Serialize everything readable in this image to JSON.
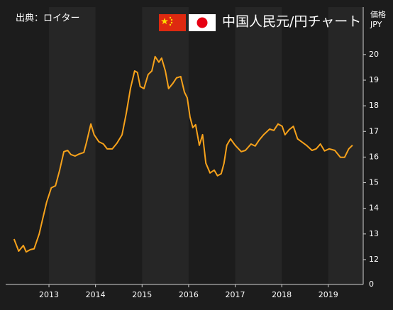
{
  "chart_data": {
    "type": "line",
    "title": "中国人民元/円チャート",
    "source": "出典：ロイター",
    "y_axis_label": [
      "価格",
      "JPY"
    ],
    "axis_break_label": "0",
    "color": "#f7a21b",
    "xlim": [
      2012.07,
      2019.75
    ],
    "xticks": [
      2013,
      2014,
      2015,
      2016,
      2017,
      2018,
      2019
    ],
    "ylim": [
      11.03,
      21.85
    ],
    "yticks": [
      12,
      13,
      14,
      15,
      16,
      17,
      18,
      19,
      20
    ],
    "x": [
      2012.25,
      2012.35,
      2012.45,
      2012.51,
      2012.6,
      2012.68,
      2012.79,
      2012.86,
      2012.95,
      2013.05,
      2013.14,
      2013.23,
      2013.32,
      2013.4,
      2013.47,
      2013.56,
      2013.65,
      2013.75,
      2013.81,
      2013.9,
      2013.97,
      2014.07,
      2014.17,
      2014.25,
      2014.36,
      2014.46,
      2014.57,
      2014.66,
      2014.75,
      2014.84,
      2014.9,
      2014.96,
      2015.04,
      2015.13,
      2015.21,
      2015.28,
      2015.36,
      2015.42,
      2015.5,
      2015.57,
      2015.66,
      2015.74,
      2015.83,
      2015.91,
      2015.97,
      2016.03,
      2016.09,
      2016.15,
      2016.23,
      2016.3,
      2016.37,
      2016.46,
      2016.55,
      2016.62,
      2016.7,
      2016.76,
      2016.82,
      2016.9,
      2017.0,
      2017.13,
      2017.22,
      2017.34,
      2017.43,
      2017.51,
      2017.61,
      2017.74,
      2017.83,
      2017.92,
      2018.01,
      2018.07,
      2018.16,
      2018.25,
      2018.34,
      2018.53,
      2018.65,
      2018.74,
      2018.83,
      2018.92,
      2019.02,
      2019.14,
      2019.26,
      2019.35,
      2019.44,
      2019.52
    ],
    "values": [
      12.8,
      12.33,
      12.55,
      12.3,
      12.39,
      12.42,
      13.0,
      13.55,
      14.24,
      14.8,
      14.88,
      15.49,
      16.21,
      16.26,
      16.1,
      16.04,
      16.12,
      16.18,
      16.6,
      17.29,
      16.87,
      16.6,
      16.51,
      16.32,
      16.32,
      16.54,
      16.87,
      17.7,
      18.67,
      19.36,
      19.3,
      18.75,
      18.67,
      19.22,
      19.36,
      19.92,
      19.7,
      19.86,
      19.36,
      18.67,
      18.87,
      19.09,
      19.14,
      18.53,
      18.31,
      17.56,
      17.15,
      17.26,
      16.46,
      16.87,
      15.76,
      15.38,
      15.49,
      15.27,
      15.35,
      15.76,
      16.46,
      16.71,
      16.46,
      16.21,
      16.26,
      16.51,
      16.43,
      16.65,
      16.87,
      17.09,
      17.04,
      17.29,
      17.2,
      16.87,
      17.07,
      17.2,
      16.71,
      16.46,
      16.26,
      16.32,
      16.51,
      16.24,
      16.32,
      16.26,
      15.99,
      15.99,
      16.32,
      16.46
    ]
  }
}
